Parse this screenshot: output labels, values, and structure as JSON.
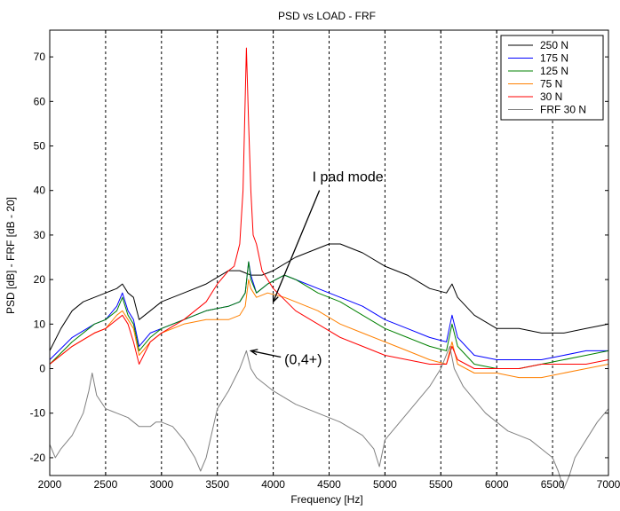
{
  "chart_data": {
    "type": "line",
    "title": "PSD vs LOAD - FRF",
    "xlabel": "Frequency [Hz]",
    "ylabel": "PSD [dB]     -     FRF [dB - 20]",
    "xlim": [
      2000,
      7000
    ],
    "ylim": [
      -24,
      76
    ],
    "xticks": [
      2000,
      2500,
      3000,
      3500,
      4000,
      4500,
      5000,
      5500,
      6000,
      6500,
      7000
    ],
    "yticks": [
      -20,
      -10,
      0,
      10,
      20,
      30,
      40,
      50,
      60,
      70
    ],
    "grid": "x-dashed",
    "legend_position": "top-right",
    "series": [
      {
        "name": "250 N",
        "color": "#000000",
        "x": [
          2000,
          2100,
          2200,
          2300,
          2400,
          2500,
          2600,
          2650,
          2700,
          2750,
          2800,
          2900,
          3000,
          3200,
          3400,
          3600,
          3700,
          3800,
          3900,
          4000,
          4200,
          4400,
          4500,
          4600,
          4800,
          5000,
          5200,
          5400,
          5550,
          5600,
          5650,
          5800,
          6000,
          6200,
          6400,
          6600,
          6800,
          7000
        ],
        "y": [
          4,
          9,
          13,
          15,
          16,
          17,
          18,
          19,
          17,
          16,
          11,
          13,
          15,
          17,
          19,
          22,
          22,
          21,
          21,
          22,
          25,
          27,
          28,
          28,
          26,
          23,
          21,
          18,
          17,
          19,
          16,
          12,
          9,
          9,
          8,
          8,
          9,
          10
        ]
      },
      {
        "name": "175 N",
        "color": "#0000ff",
        "x": [
          2000,
          2200,
          2400,
          2500,
          2600,
          2650,
          2700,
          2750,
          2800,
          2900,
          3000,
          3200,
          3400,
          3600,
          3700,
          3750,
          3780,
          3800,
          3850,
          3950,
          4100,
          4200,
          4400,
          4600,
          4800,
          5000,
          5200,
          5400,
          5550,
          5600,
          5650,
          5800,
          6000,
          6200,
          6400,
          6600,
          6800,
          7000
        ],
        "y": [
          2,
          7,
          10,
          11,
          14,
          17,
          13,
          11,
          5,
          8,
          9,
          11,
          13,
          14,
          15,
          17,
          24,
          21,
          17,
          19,
          21,
          20,
          18,
          16,
          14,
          11,
          9,
          7,
          6,
          12,
          7,
          3,
          2,
          2,
          2,
          3,
          4,
          4
        ]
      },
      {
        "name": "125 N",
        "color": "#008000",
        "x": [
          2000,
          2200,
          2400,
          2500,
          2600,
          2650,
          2700,
          2750,
          2800,
          2900,
          3000,
          3200,
          3400,
          3600,
          3700,
          3750,
          3780,
          3800,
          3850,
          3950,
          4100,
          4200,
          4400,
          4600,
          4800,
          5000,
          5200,
          5400,
          5550,
          5600,
          5650,
          5800,
          6000,
          6200,
          6400,
          6600,
          6800,
          7000
        ],
        "y": [
          1,
          6,
          10,
          11,
          13,
          16,
          12,
          10,
          4,
          7,
          9,
          11,
          13,
          14,
          15,
          17,
          24,
          20,
          17,
          19,
          21,
          20,
          17,
          15,
          12,
          9,
          7,
          5,
          4,
          10,
          5,
          1,
          0,
          0,
          1,
          2,
          3,
          4
        ]
      },
      {
        "name": "75 N",
        "color": "#ff8000",
        "x": [
          2000,
          2200,
          2400,
          2500,
          2600,
          2650,
          2700,
          2750,
          2800,
          2900,
          3000,
          3200,
          3400,
          3600,
          3700,
          3750,
          3780,
          3800,
          3850,
          3950,
          4100,
          4200,
          4400,
          4600,
          4800,
          5000,
          5200,
          5400,
          5550,
          5600,
          5650,
          5800,
          6000,
          6200,
          6400,
          6600,
          6800,
          7000
        ],
        "y": [
          1,
          5,
          8,
          9,
          12,
          13,
          11,
          9,
          3,
          6,
          8,
          10,
          11,
          11,
          12,
          14,
          20,
          18,
          16,
          17,
          16,
          15,
          13,
          10,
          8,
          6,
          4,
          2,
          1,
          6,
          1,
          -1,
          -1,
          -2,
          -2,
          -1,
          0,
          1
        ]
      },
      {
        "name": "30 N",
        "color": "#ff0000",
        "x": [
          2000,
          2200,
          2400,
          2500,
          2600,
          2650,
          2700,
          2750,
          2800,
          2900,
          3000,
          3200,
          3400,
          3500,
          3600,
          3650,
          3700,
          3730,
          3760,
          3780,
          3800,
          3820,
          3850,
          3900,
          4000,
          4200,
          4400,
          4600,
          4800,
          5000,
          5200,
          5400,
          5550,
          5600,
          5650,
          5800,
          6000,
          6200,
          6400,
          6600,
          6800,
          7000
        ],
        "y": [
          1,
          5,
          8,
          9,
          11,
          12,
          10,
          6,
          1,
          6,
          8,
          11,
          15,
          19,
          22,
          23,
          28,
          40,
          72,
          55,
          40,
          30,
          28,
          22,
          18,
          13,
          10,
          7,
          5,
          3,
          2,
          1,
          1,
          5,
          2,
          0,
          0,
          0,
          1,
          1,
          1,
          2
        ]
      },
      {
        "name": "FRF 30 N",
        "color": "#808080",
        "x": [
          2000,
          2050,
          2100,
          2200,
          2300,
          2350,
          2380,
          2420,
          2500,
          2600,
          2700,
          2800,
          2850,
          2900,
          2950,
          3000,
          3100,
          3200,
          3300,
          3350,
          3400,
          3500,
          3600,
          3700,
          3760,
          3780,
          3800,
          3850,
          3900,
          4000,
          4200,
          4400,
          4600,
          4800,
          4900,
          4950,
          5000,
          5100,
          5200,
          5300,
          5400,
          5500,
          5580,
          5620,
          5700,
          5800,
          5900,
          6000,
          6100,
          6200,
          6300,
          6400,
          6500,
          6550,
          6600,
          6650,
          6700,
          6800,
          6900,
          7000
        ],
        "y": [
          -17,
          -20,
          -18,
          -15,
          -10,
          -5,
          -1,
          -6,
          -9,
          -10,
          -11,
          -13,
          -13,
          -13,
          -12,
          -12,
          -13,
          -16,
          -20,
          -23,
          -20,
          -9,
          -5,
          0,
          4,
          2,
          0,
          -2,
          -3,
          -5,
          -8,
          -10,
          -12,
          -15,
          -18,
          -22,
          -16,
          -13,
          -10,
          -7,
          -4,
          0,
          5,
          0,
          -4,
          -7,
          -10,
          -12,
          -14,
          -15,
          -16,
          -18,
          -20,
          -23,
          -27,
          -24,
          -20,
          -16,
          -12,
          -9
        ]
      }
    ],
    "annotations": [
      {
        "text": "I pad mode",
        "x": 4350,
        "y": 42,
        "arrow_to": [
          4000,
          15
        ]
      },
      {
        "text": "(0,4+)",
        "x": 4100,
        "y": 1,
        "arrow_to": [
          3800,
          4
        ]
      }
    ]
  }
}
